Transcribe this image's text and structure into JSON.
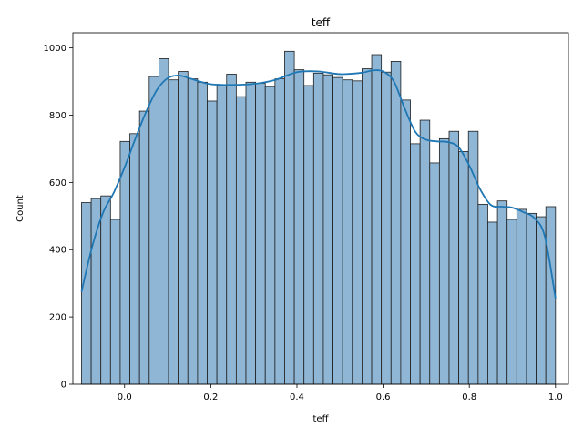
{
  "chart_data": {
    "type": "bar",
    "title": "teff",
    "xlabel": "teff",
    "ylabel": "Count",
    "xlim": [
      -0.12,
      1.03
    ],
    "ylim": [
      0,
      1045
    ],
    "xticks": [
      "0.0",
      "0.2",
      "0.4",
      "0.6",
      "0.8",
      "1.0"
    ],
    "yticks": [
      "0",
      "200",
      "400",
      "600",
      "800",
      "1000"
    ],
    "bins": {
      "start": -0.1,
      "end": 1.0,
      "counts": [
        540,
        552,
        560,
        490,
        722,
        745,
        812,
        915,
        968,
        905,
        930,
        908,
        898,
        842,
        888,
        922,
        855,
        898,
        895,
        885,
        908,
        990,
        935,
        888,
        925,
        920,
        912,
        905,
        902,
        938,
        980,
        928,
        960,
        845,
        715,
        785,
        658,
        730,
        752,
        692,
        752,
        535,
        482,
        545,
        490,
        520,
        508,
        498,
        528
      ]
    },
    "kde": {
      "x": [
        -0.1,
        -0.075,
        -0.05,
        -0.025,
        0.0,
        0.025,
        0.05,
        0.075,
        0.1,
        0.125,
        0.15,
        0.175,
        0.2,
        0.25,
        0.3,
        0.35,
        0.4,
        0.45,
        0.5,
        0.55,
        0.575,
        0.6,
        0.625,
        0.65,
        0.675,
        0.7,
        0.725,
        0.75,
        0.775,
        0.8,
        0.825,
        0.85,
        0.875,
        0.9,
        0.925,
        0.95,
        0.975,
        1.0
      ],
      "y": [
        275,
        410,
        510,
        570,
        645,
        730,
        810,
        875,
        910,
        918,
        910,
        900,
        892,
        890,
        893,
        905,
        928,
        930,
        922,
        926,
        933,
        930,
        900,
        820,
        750,
        727,
        722,
        720,
        705,
        650,
        580,
        533,
        528,
        525,
        512,
        495,
        440,
        255
      ]
    },
    "grid": false,
    "legend": false,
    "colors": {
      "bar_fill": "#8fb6d5",
      "bar_edge": "#1f1f1f",
      "kde_line": "#1f77b4"
    }
  }
}
